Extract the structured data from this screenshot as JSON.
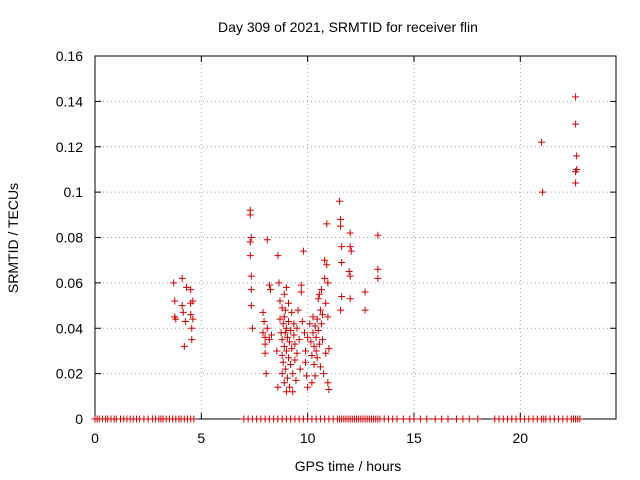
{
  "chart_data": {
    "type": "scatter",
    "title": "Day 309 of 2021, SRMTID for receiver flin",
    "xlabel": "GPS time / hours",
    "ylabel": "SRMTID / TECUs",
    "xlim": [
      0,
      24.5
    ],
    "ylim": [
      0,
      0.16
    ],
    "xticks": [
      0,
      5,
      10,
      15,
      20
    ],
    "xtick_labels": [
      "0",
      "5",
      "10",
      "15",
      "20"
    ],
    "yticks": [
      0,
      0.02,
      0.04,
      0.06,
      0.08,
      0.1,
      0.12,
      0.14,
      0.16
    ],
    "ytick_labels": [
      "0",
      "0.02",
      "0.04",
      "0.06",
      "0.08",
      "0.1",
      "0.12",
      "0.14",
      "0.16"
    ],
    "grid": true,
    "legend": "none",
    "series": [
      {
        "marker": "plus",
        "color": "#d00000",
        "points": [
          [
            3.7,
            0.06
          ],
          [
            3.75,
            0.052
          ],
          [
            3.75,
            0.045
          ],
          [
            3.8,
            0.044
          ],
          [
            4.1,
            0.062
          ],
          [
            4.1,
            0.05
          ],
          [
            4.15,
            0.047
          ],
          [
            4.2,
            0.032
          ],
          [
            4.25,
            0.043
          ],
          [
            4.3,
            0.058
          ],
          [
            4.5,
            0.057
          ],
          [
            4.5,
            0.051
          ],
          [
            4.5,
            0.046
          ],
          [
            4.55,
            0.04
          ],
          [
            4.55,
            0.035
          ],
          [
            4.6,
            0.052
          ],
          [
            4.6,
            0.044
          ],
          [
            7.3,
            0.092
          ],
          [
            7.3,
            0.09
          ],
          [
            7.35,
            0.08
          ],
          [
            7.3,
            0.078
          ],
          [
            7.3,
            0.072
          ],
          [
            7.35,
            0.063
          ],
          [
            7.35,
            0.057
          ],
          [
            7.35,
            0.05
          ],
          [
            7.4,
            0.04
          ],
          [
            7.9,
            0.047
          ],
          [
            7.95,
            0.043
          ],
          [
            7.9,
            0.038
          ],
          [
            8.0,
            0.036
          ],
          [
            8.0,
            0.033
          ],
          [
            8.0,
            0.029
          ],
          [
            8.05,
            0.02
          ],
          [
            8.1,
            0.04
          ],
          [
            8.1,
            0.079
          ],
          [
            8.2,
            0.059
          ],
          [
            8.25,
            0.057
          ],
          [
            8.2,
            0.035
          ],
          [
            8.3,
            0.037
          ],
          [
            8.55,
            0.03
          ],
          [
            8.6,
            0.014
          ],
          [
            8.6,
            0.072
          ],
          [
            8.65,
            0.06
          ],
          [
            8.7,
            0.052
          ],
          [
            8.7,
            0.044
          ],
          [
            8.75,
            0.038
          ],
          [
            8.8,
            0.049
          ],
          [
            8.8,
            0.035
          ],
          [
            8.8,
            0.028
          ],
          [
            8.8,
            0.02
          ],
          [
            8.85,
            0.042
          ],
          [
            8.85,
            0.025
          ],
          [
            8.9,
            0.055
          ],
          [
            8.9,
            0.045
          ],
          [
            8.9,
            0.032
          ],
          [
            8.9,
            0.016
          ],
          [
            8.95,
            0.048
          ],
          [
            8.95,
            0.038
          ],
          [
            8.95,
            0.022
          ],
          [
            9.0,
            0.058
          ],
          [
            9.0,
            0.04
          ],
          [
            9.0,
            0.03
          ],
          [
            9.0,
            0.012
          ],
          [
            9.05,
            0.036
          ],
          [
            9.05,
            0.018
          ],
          [
            9.1,
            0.051
          ],
          [
            9.1,
            0.043
          ],
          [
            9.1,
            0.027
          ],
          [
            9.15,
            0.034
          ],
          [
            9.15,
            0.014
          ],
          [
            9.2,
            0.039
          ],
          [
            9.2,
            0.024
          ],
          [
            9.25,
            0.047
          ],
          [
            9.25,
            0.031
          ],
          [
            9.3,
            0.02
          ],
          [
            9.3,
            0.012
          ],
          [
            9.35,
            0.042
          ],
          [
            9.35,
            0.037
          ],
          [
            9.4,
            0.033
          ],
          [
            9.4,
            0.026
          ],
          [
            9.45,
            0.017
          ],
          [
            9.5,
            0.04
          ],
          [
            9.5,
            0.029
          ],
          [
            9.55,
            0.048
          ],
          [
            9.6,
            0.035
          ],
          [
            9.65,
            0.022
          ],
          [
            9.7,
            0.059
          ],
          [
            9.7,
            0.056
          ],
          [
            9.75,
            0.043
          ],
          [
            9.8,
            0.074
          ],
          [
            9.85,
            0.038
          ],
          [
            9.9,
            0.03
          ],
          [
            9.9,
            0.025
          ],
          [
            9.95,
            0.019
          ],
          [
            10.0,
            0.036
          ],
          [
            10.0,
            0.014
          ],
          [
            10.1,
            0.042
          ],
          [
            10.15,
            0.034
          ],
          [
            10.2,
            0.028
          ],
          [
            10.2,
            0.016
          ],
          [
            10.25,
            0.045
          ],
          [
            10.25,
            0.038
          ],
          [
            10.3,
            0.032
          ],
          [
            10.3,
            0.024
          ],
          [
            10.35,
            0.041
          ],
          [
            10.35,
            0.019
          ],
          [
            10.4,
            0.036
          ],
          [
            10.4,
            0.03
          ],
          [
            10.45,
            0.044
          ],
          [
            10.45,
            0.027
          ],
          [
            10.5,
            0.053
          ],
          [
            10.5,
            0.039
          ],
          [
            10.55,
            0.055
          ],
          [
            10.55,
            0.033
          ],
          [
            10.6,
            0.048
          ],
          [
            10.6,
            0.023
          ],
          [
            10.65,
            0.057
          ],
          [
            10.65,
            0.042
          ],
          [
            10.7,
            0.046
          ],
          [
            10.7,
            0.035
          ],
          [
            10.75,
            0.02
          ],
          [
            10.8,
            0.07
          ],
          [
            10.8,
            0.062
          ],
          [
            10.85,
            0.051
          ],
          [
            10.85,
            0.029
          ],
          [
            10.9,
            0.086
          ],
          [
            10.9,
            0.068
          ],
          [
            10.95,
            0.06
          ],
          [
            10.95,
            0.045
          ],
          [
            11.0,
            0.031
          ],
          [
            11.0,
            0.013
          ],
          [
            10.95,
            0.016
          ],
          [
            11.5,
            0.096
          ],
          [
            11.55,
            0.088
          ],
          [
            11.55,
            0.085
          ],
          [
            11.6,
            0.076
          ],
          [
            11.6,
            0.069
          ],
          [
            11.6,
            0.054
          ],
          [
            11.55,
            0.048
          ],
          [
            12.0,
            0.082
          ],
          [
            12.0,
            0.076
          ],
          [
            12.05,
            0.074
          ],
          [
            11.95,
            0.065
          ],
          [
            12.0,
            0.063
          ],
          [
            12.0,
            0.053
          ],
          [
            12.7,
            0.056
          ],
          [
            12.7,
            0.048
          ],
          [
            13.3,
            0.081
          ],
          [
            13.3,
            0.066
          ],
          [
            13.3,
            0.062
          ],
          [
            21.0,
            0.122
          ],
          [
            21.05,
            0.1
          ],
          [
            22.6,
            0.142
          ],
          [
            22.6,
            0.13
          ],
          [
            22.65,
            0.116
          ],
          [
            22.65,
            0.11
          ],
          [
            22.6,
            0.109
          ],
          [
            22.6,
            0.104
          ]
        ],
        "zero_points": [
          0.0,
          0.1,
          0.2,
          0.35,
          0.5,
          0.6,
          0.75,
          0.9,
          1.0,
          1.2,
          1.35,
          1.5,
          1.65,
          1.8,
          1.95,
          2.1,
          2.3,
          2.5,
          2.7,
          2.85,
          3.0,
          3.1,
          3.2,
          3.35,
          3.5,
          3.65,
          3.8,
          3.95,
          4.05,
          4.2,
          4.35,
          4.5,
          4.65,
          7.0,
          7.2,
          7.4,
          7.6,
          7.8,
          8.0,
          8.2,
          8.4,
          8.6,
          8.8,
          9.0,
          9.2,
          9.4,
          9.6,
          9.8,
          10.0,
          10.2,
          10.4,
          10.6,
          10.8,
          11.0,
          11.2,
          11.4,
          11.5,
          11.6,
          11.7,
          11.8,
          11.9,
          12.0,
          12.1,
          12.2,
          12.3,
          12.4,
          12.5,
          12.6,
          12.7,
          12.8,
          12.9,
          13.0,
          13.1,
          13.2,
          13.3,
          13.4,
          13.6,
          13.8,
          14.0,
          14.2,
          14.5,
          14.8,
          15.0,
          15.3,
          15.6,
          16.0,
          16.3,
          16.6,
          17.0,
          17.3,
          17.6,
          18.0,
          18.8,
          19.0,
          19.2,
          19.4,
          19.6,
          19.8,
          20.0,
          20.2,
          20.4,
          20.6,
          20.8,
          21.0,
          21.1,
          21.2,
          21.4,
          21.6,
          21.8,
          22.0,
          22.2,
          22.4,
          22.5,
          22.6,
          22.7,
          22.8
        ]
      }
    ]
  }
}
